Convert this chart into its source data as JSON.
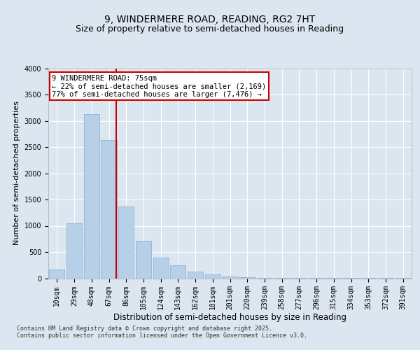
{
  "title_line1": "9, WINDERMERE ROAD, READING, RG2 7HT",
  "title_line2": "Size of property relative to semi-detached houses in Reading",
  "xlabel": "Distribution of semi-detached houses by size in Reading",
  "ylabel": "Number of semi-detached properties",
  "categories": [
    "10sqm",
    "29sqm",
    "48sqm",
    "67sqm",
    "86sqm",
    "105sqm",
    "124sqm",
    "143sqm",
    "162sqm",
    "181sqm",
    "201sqm",
    "220sqm",
    "239sqm",
    "258sqm",
    "277sqm",
    "296sqm",
    "315sqm",
    "334sqm",
    "353sqm",
    "372sqm",
    "391sqm"
  ],
  "values": [
    170,
    1050,
    3130,
    2630,
    1370,
    720,
    390,
    250,
    130,
    80,
    40,
    15,
    10,
    5,
    5,
    3,
    2,
    2,
    1,
    1,
    1
  ],
  "bar_color": "#b8cfe8",
  "bar_edgecolor": "#7aaed4",
  "property_line_color": "#cc0000",
  "annotation_title": "9 WINDERMERE ROAD: 75sqm",
  "annotation_line1": "← 22% of semi-detached houses are smaller (2,169)",
  "annotation_line2": "77% of semi-detached houses are larger (7,476) →",
  "annotation_box_edgecolor": "#cc0000",
  "ylim": [
    0,
    4000
  ],
  "background_color": "#dce6f0",
  "plot_bg_color": "#dce6f0",
  "grid_color": "#ffffff",
  "footer_line1": "Contains HM Land Registry data © Crown copyright and database right 2025.",
  "footer_line2": "Contains public sector information licensed under the Open Government Licence v3.0.",
  "title_fontsize": 10,
  "subtitle_fontsize": 9,
  "tick_fontsize": 7,
  "ylabel_fontsize": 8,
  "xlabel_fontsize": 8.5,
  "annotation_fontsize": 7.5,
  "footer_fontsize": 6
}
